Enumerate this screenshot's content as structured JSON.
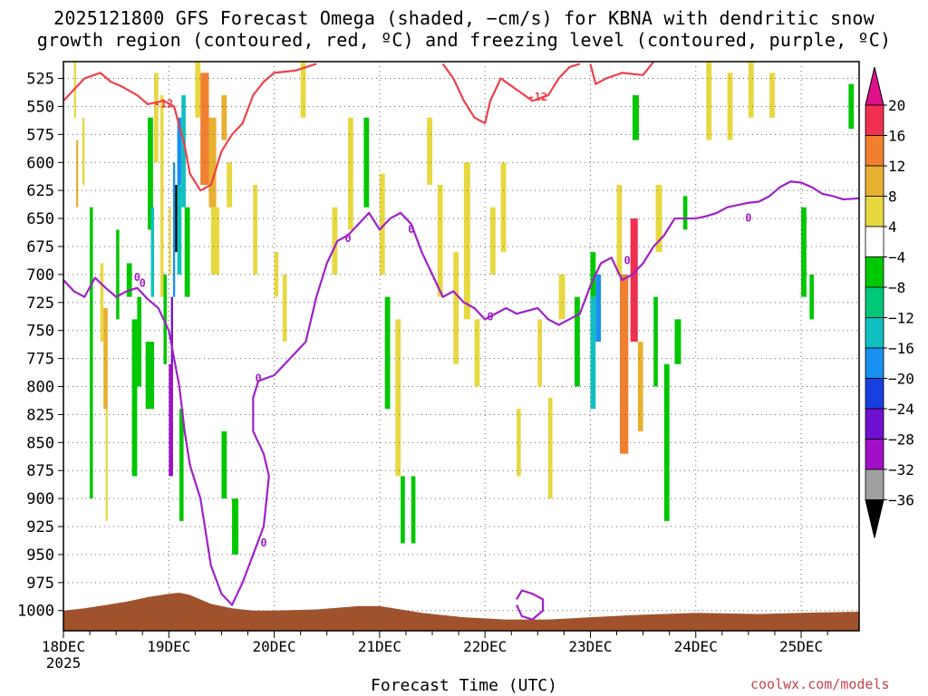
{
  "title_line1": "2025121800 GFS Forecast Omega (shaded, −cm/s) for KBNA with dendritic snow",
  "title_line2": "growth region (contoured, red, ºC) and freezing level (contoured, purple, ºC)",
  "xlabel": "Forecast Time (UTC)",
  "credit": "coolwx.com/models",
  "chart_data": {
    "type": "heatmap",
    "x_ticks": [
      "18DEC",
      "19DEC",
      "20DEC",
      "21DEC",
      "22DEC",
      "23DEC",
      "24DEC",
      "25DEC"
    ],
    "x_first_tick_year": "2025",
    "x_range_days": [
      0,
      7.55
    ],
    "y_ticks": [
      "525",
      "550",
      "575",
      "600",
      "625",
      "650",
      "675",
      "700",
      "725",
      "750",
      "775",
      "800",
      "825",
      "850",
      "875",
      "900",
      "925",
      "950",
      "975",
      "1000"
    ],
    "y_range_hpa": [
      510,
      1018
    ],
    "grid": true,
    "colorbar": {
      "labels": [
        "20",
        "16",
        "12",
        "8",
        "4",
        "−4",
        "−8",
        "−12",
        "−16",
        "−20",
        "−24",
        "−28",
        "−32",
        "−36"
      ],
      "colors": [
        "#f03050",
        "#f08030",
        "#e8b030",
        "#e8d840",
        "#ffffff",
        "#00c800",
        "#00c87a",
        "#10c0c0",
        "#1890f0",
        "#1840e0",
        "#7010d0",
        "#a010c8",
        "#a0a0a0"
      ],
      "top_arrow_color": "#e0108c",
      "bottom_arrow_color": "#000000"
    },
    "dendritic_contour_label": "-12",
    "freezing_contour_label": "0",
    "dendritic_color": "#f0404a",
    "freezing_color": "#a020c8",
    "terrain_color": "#a0522d",
    "dendritic_line": [
      [
        0,
        545
      ],
      [
        0.1,
        535
      ],
      [
        0.2,
        525
      ],
      [
        0.35,
        520
      ],
      [
        0.45,
        528
      ],
      [
        0.55,
        532
      ],
      [
        0.7,
        540
      ],
      [
        0.8,
        548
      ],
      [
        0.95,
        545
      ],
      [
        1.05,
        550
      ],
      [
        1.15,
        585
      ],
      [
        1.2,
        610
      ],
      [
        1.3,
        625
      ],
      [
        1.4,
        620
      ],
      [
        1.5,
        590
      ],
      [
        1.6,
        575
      ],
      [
        1.7,
        565
      ],
      [
        1.8,
        540
      ],
      [
        1.9,
        528
      ],
      [
        2.0,
        520
      ],
      [
        2.2,
        518
      ],
      [
        2.4,
        512
      ]
    ],
    "dendritic_line2": [
      [
        3.6,
        512
      ],
      [
        3.7,
        525
      ],
      [
        3.8,
        545
      ],
      [
        3.9,
        560
      ],
      [
        4.0,
        565
      ],
      [
        4.05,
        545
      ],
      [
        4.15,
        525
      ],
      [
        4.3,
        535
      ],
      [
        4.45,
        545
      ],
      [
        4.6,
        540
      ],
      [
        4.7,
        525
      ],
      [
        4.8,
        515
      ],
      [
        4.9,
        512
      ]
    ],
    "dendritic_line3": [
      [
        5.0,
        512
      ],
      [
        5.05,
        530
      ],
      [
        5.15,
        525
      ],
      [
        5.3,
        520
      ],
      [
        5.5,
        522
      ],
      [
        5.6,
        510
      ]
    ],
    "freezing_line": [
      [
        0,
        705
      ],
      [
        0.1,
        715
      ],
      [
        0.2,
        720
      ],
      [
        0.3,
        703
      ],
      [
        0.4,
        712
      ],
      [
        0.5,
        720
      ],
      [
        0.6,
        715
      ],
      [
        0.7,
        712
      ],
      [
        0.8,
        722
      ],
      [
        0.9,
        730
      ],
      [
        1.0,
        750
      ],
      [
        1.05,
        775
      ],
      [
        1.1,
        800
      ],
      [
        1.15,
        840
      ],
      [
        1.2,
        870
      ],
      [
        1.3,
        900
      ],
      [
        1.35,
        930
      ],
      [
        1.4,
        960
      ],
      [
        1.5,
        985
      ],
      [
        1.6,
        995
      ],
      [
        1.7,
        975
      ],
      [
        1.8,
        950
      ],
      [
        1.9,
        925
      ],
      [
        1.95,
        880
      ],
      [
        1.9,
        860
      ],
      [
        1.8,
        840
      ],
      [
        1.8,
        810
      ],
      [
        1.85,
        795
      ],
      [
        2.0,
        790
      ],
      [
        2.1,
        780
      ],
      [
        2.2,
        770
      ],
      [
        2.3,
        760
      ],
      [
        2.4,
        720
      ],
      [
        2.5,
        690
      ],
      [
        2.6,
        670
      ],
      [
        2.7,
        665
      ],
      [
        2.8,
        655
      ],
      [
        2.9,
        645
      ],
      [
        3.0,
        660
      ],
      [
        3.1,
        650
      ],
      [
        3.2,
        645
      ],
      [
        3.3,
        655
      ],
      [
        3.4,
        680
      ],
      [
        3.5,
        700
      ],
      [
        3.6,
        720
      ],
      [
        3.7,
        715
      ],
      [
        3.8,
        725
      ],
      [
        3.9,
        730
      ],
      [
        4.0,
        740
      ],
      [
        4.1,
        735
      ],
      [
        4.2,
        730
      ],
      [
        4.3,
        735
      ],
      [
        4.5,
        730
      ],
      [
        4.6,
        740
      ],
      [
        4.7,
        745
      ],
      [
        4.8,
        740
      ],
      [
        4.9,
        735
      ],
      [
        5.0,
        710
      ],
      [
        5.1,
        690
      ],
      [
        5.2,
        685
      ],
      [
        5.3,
        705
      ],
      [
        5.4,
        700
      ],
      [
        5.5,
        690
      ],
      [
        5.6,
        675
      ],
      [
        5.7,
        665
      ],
      [
        5.8,
        650
      ],
      [
        5.9,
        650
      ],
      [
        6.0,
        650
      ],
      [
        6.1,
        648
      ],
      [
        6.2,
        645
      ],
      [
        6.3,
        640
      ],
      [
        6.4,
        638
      ],
      [
        6.5,
        636
      ],
      [
        6.6,
        635
      ],
      [
        6.7,
        630
      ],
      [
        6.8,
        622
      ],
      [
        6.9,
        617
      ],
      [
        7.0,
        618
      ],
      [
        7.1,
        622
      ],
      [
        7.2,
        628
      ],
      [
        7.3,
        630
      ],
      [
        7.4,
        633
      ],
      [
        7.55,
        632
      ]
    ],
    "freezing_loop": [
      [
        4.3,
        990
      ],
      [
        4.35,
        982
      ],
      [
        4.45,
        985
      ],
      [
        4.55,
        990
      ],
      [
        4.55,
        1000
      ],
      [
        4.45,
        1008
      ],
      [
        4.35,
        1005
      ],
      [
        4.3,
        995
      ]
    ],
    "terrain_top": [
      [
        0,
        1000
      ],
      [
        0.2,
        998
      ],
      [
        0.4,
        995
      ],
      [
        0.6,
        992
      ],
      [
        0.8,
        988
      ],
      [
        1.0,
        985
      ],
      [
        1.1,
        984
      ],
      [
        1.2,
        986
      ],
      [
        1.4,
        994
      ],
      [
        1.6,
        998
      ],
      [
        1.8,
        1000
      ],
      [
        2.0,
        1000
      ],
      [
        2.4,
        999
      ],
      [
        2.8,
        996
      ],
      [
        3.0,
        996
      ],
      [
        3.4,
        1002
      ],
      [
        3.8,
        1006
      ],
      [
        4.2,
        1008
      ],
      [
        4.6,
        1008
      ],
      [
        5.0,
        1006
      ],
      [
        5.4,
        1004
      ],
      [
        6.0,
        1002
      ],
      [
        6.6,
        1003
      ],
      [
        7.0,
        1002
      ],
      [
        7.55,
        1001
      ]
    ],
    "shading_cells": [
      [
        0.1,
        0.12,
        510,
        560,
        "#e8d840"
      ],
      [
        0.12,
        0.14,
        580,
        640,
        "#e8b030"
      ],
      [
        0.18,
        0.2,
        560,
        620,
        "#e8d840"
      ],
      [
        0.25,
        0.28,
        640,
        900,
        "#00c800"
      ],
      [
        0.35,
        0.38,
        690,
        760,
        "#e8d840"
      ],
      [
        0.38,
        0.42,
        730,
        820,
        "#e8b030"
      ],
      [
        0.4,
        0.42,
        820,
        920,
        "#e8d840"
      ],
      [
        0.5,
        0.53,
        660,
        740,
        "#00c800"
      ],
      [
        0.6,
        0.65,
        690,
        720,
        "#00c800"
      ],
      [
        0.65,
        0.7,
        740,
        880,
        "#00c800"
      ],
      [
        0.7,
        0.74,
        720,
        800,
        "#00c800"
      ],
      [
        0.78,
        0.86,
        760,
        820,
        "#00c800"
      ],
      [
        0.8,
        0.85,
        560,
        660,
        "#00c800"
      ],
      [
        0.83,
        0.86,
        640,
        720,
        "#10c0c0"
      ],
      [
        0.86,
        0.9,
        520,
        600,
        "#e8d840"
      ],
      [
        0.92,
        0.95,
        540,
        720,
        "#e8d840"
      ],
      [
        0.95,
        0.98,
        700,
        780,
        "#00c800"
      ],
      [
        1.0,
        1.02,
        640,
        700,
        "#e8d840"
      ],
      [
        1.0,
        1.04,
        780,
        880,
        "#a010c8"
      ],
      [
        1.02,
        1.04,
        720,
        780,
        "#7010d0"
      ],
      [
        1.04,
        1.06,
        600,
        720,
        "#1890f0"
      ],
      [
        1.06,
        1.08,
        620,
        680,
        "#000000"
      ],
      [
        1.08,
        1.12,
        560,
        620,
        "#1890f0"
      ],
      [
        1.08,
        1.12,
        620,
        700,
        "#10c0c0"
      ],
      [
        1.12,
        1.16,
        540,
        640,
        "#10c0c0"
      ],
      [
        1.15,
        1.2,
        640,
        720,
        "#00c800"
      ],
      [
        1.1,
        1.14,
        820,
        920,
        "#00c800"
      ],
      [
        1.25,
        1.3,
        510,
        560,
        "#e8d840"
      ],
      [
        1.3,
        1.38,
        520,
        620,
        "#f08030"
      ],
      [
        1.38,
        1.45,
        560,
        640,
        "#e8b030"
      ],
      [
        1.4,
        1.48,
        640,
        700,
        "#e8d840"
      ],
      [
        1.5,
        1.55,
        540,
        580,
        "#e8b030"
      ],
      [
        1.55,
        1.6,
        600,
        640,
        "#e8d840"
      ],
      [
        1.5,
        1.55,
        840,
        900,
        "#00c800"
      ],
      [
        1.6,
        1.66,
        900,
        950,
        "#00c800"
      ],
      [
        1.8,
        1.84,
        620,
        700,
        "#e8d840"
      ],
      [
        2.0,
        2.04,
        680,
        720,
        "#e8d840"
      ],
      [
        2.08,
        2.12,
        700,
        760,
        "#e8d840"
      ],
      [
        2.25,
        2.3,
        510,
        560,
        "#e8d840"
      ],
      [
        2.55,
        2.6,
        640,
        700,
        "#e8d840"
      ],
      [
        2.7,
        2.75,
        560,
        660,
        "#e8d840"
      ],
      [
        2.85,
        2.9,
        560,
        640,
        "#00c800"
      ],
      [
        3.0,
        3.05,
        610,
        700,
        "#e8d840"
      ],
      [
        3.05,
        3.1,
        720,
        820,
        "#00c800"
      ],
      [
        3.15,
        3.2,
        740,
        880,
        "#e8d840"
      ],
      [
        3.2,
        3.24,
        880,
        940,
        "#00c800"
      ],
      [
        3.3,
        3.34,
        880,
        940,
        "#00c800"
      ],
      [
        3.45,
        3.5,
        560,
        620,
        "#e8d840"
      ],
      [
        3.55,
        3.6,
        620,
        720,
        "#e8d840"
      ],
      [
        3.7,
        3.75,
        680,
        780,
        "#e8d840"
      ],
      [
        3.8,
        3.86,
        600,
        740,
        "#e8d840"
      ],
      [
        3.9,
        3.95,
        740,
        800,
        "#e8d840"
      ],
      [
        4.05,
        4.1,
        640,
        700,
        "#e8d840"
      ],
      [
        4.15,
        4.2,
        600,
        680,
        "#e8d840"
      ],
      [
        4.3,
        4.34,
        820,
        880,
        "#e8d840"
      ],
      [
        4.5,
        4.54,
        740,
        800,
        "#e8d840"
      ],
      [
        4.6,
        4.64,
        810,
        900,
        "#e8d840"
      ],
      [
        4.7,
        4.76,
        700,
        740,
        "#e8d840"
      ],
      [
        4.85,
        4.9,
        720,
        800,
        "#00c800"
      ],
      [
        5.0,
        5.05,
        680,
        720,
        "#00c800"
      ],
      [
        5.0,
        5.05,
        720,
        820,
        "#10c0c0"
      ],
      [
        5.05,
        5.1,
        700,
        760,
        "#1890f0"
      ],
      [
        5.25,
        5.3,
        620,
        700,
        "#e8d840"
      ],
      [
        5.28,
        5.36,
        700,
        860,
        "#f08030"
      ],
      [
        5.38,
        5.45,
        650,
        760,
        "#f03050"
      ],
      [
        5.45,
        5.5,
        760,
        840,
        "#e8b030"
      ],
      [
        5.4,
        5.46,
        540,
        580,
        "#00c800"
      ],
      [
        5.6,
        5.64,
        720,
        800,
        "#00c800"
      ],
      [
        5.62,
        5.68,
        620,
        680,
        "#e8d840"
      ],
      [
        5.7,
        5.75,
        780,
        920,
        "#00c800"
      ],
      [
        5.8,
        5.86,
        740,
        780,
        "#00c800"
      ],
      [
        5.88,
        5.92,
        630,
        660,
        "#00c800"
      ],
      [
        6.1,
        6.15,
        510,
        580,
        "#e8d840"
      ],
      [
        6.3,
        6.35,
        520,
        580,
        "#e8d840"
      ],
      [
        6.5,
        6.55,
        510,
        560,
        "#e8d840"
      ],
      [
        6.7,
        6.75,
        520,
        560,
        "#e8d840"
      ],
      [
        7.0,
        7.05,
        640,
        720,
        "#00c800"
      ],
      [
        7.08,
        7.12,
        700,
        740,
        "#00c800"
      ],
      [
        7.45,
        7.5,
        530,
        570,
        "#00c800"
      ]
    ]
  }
}
